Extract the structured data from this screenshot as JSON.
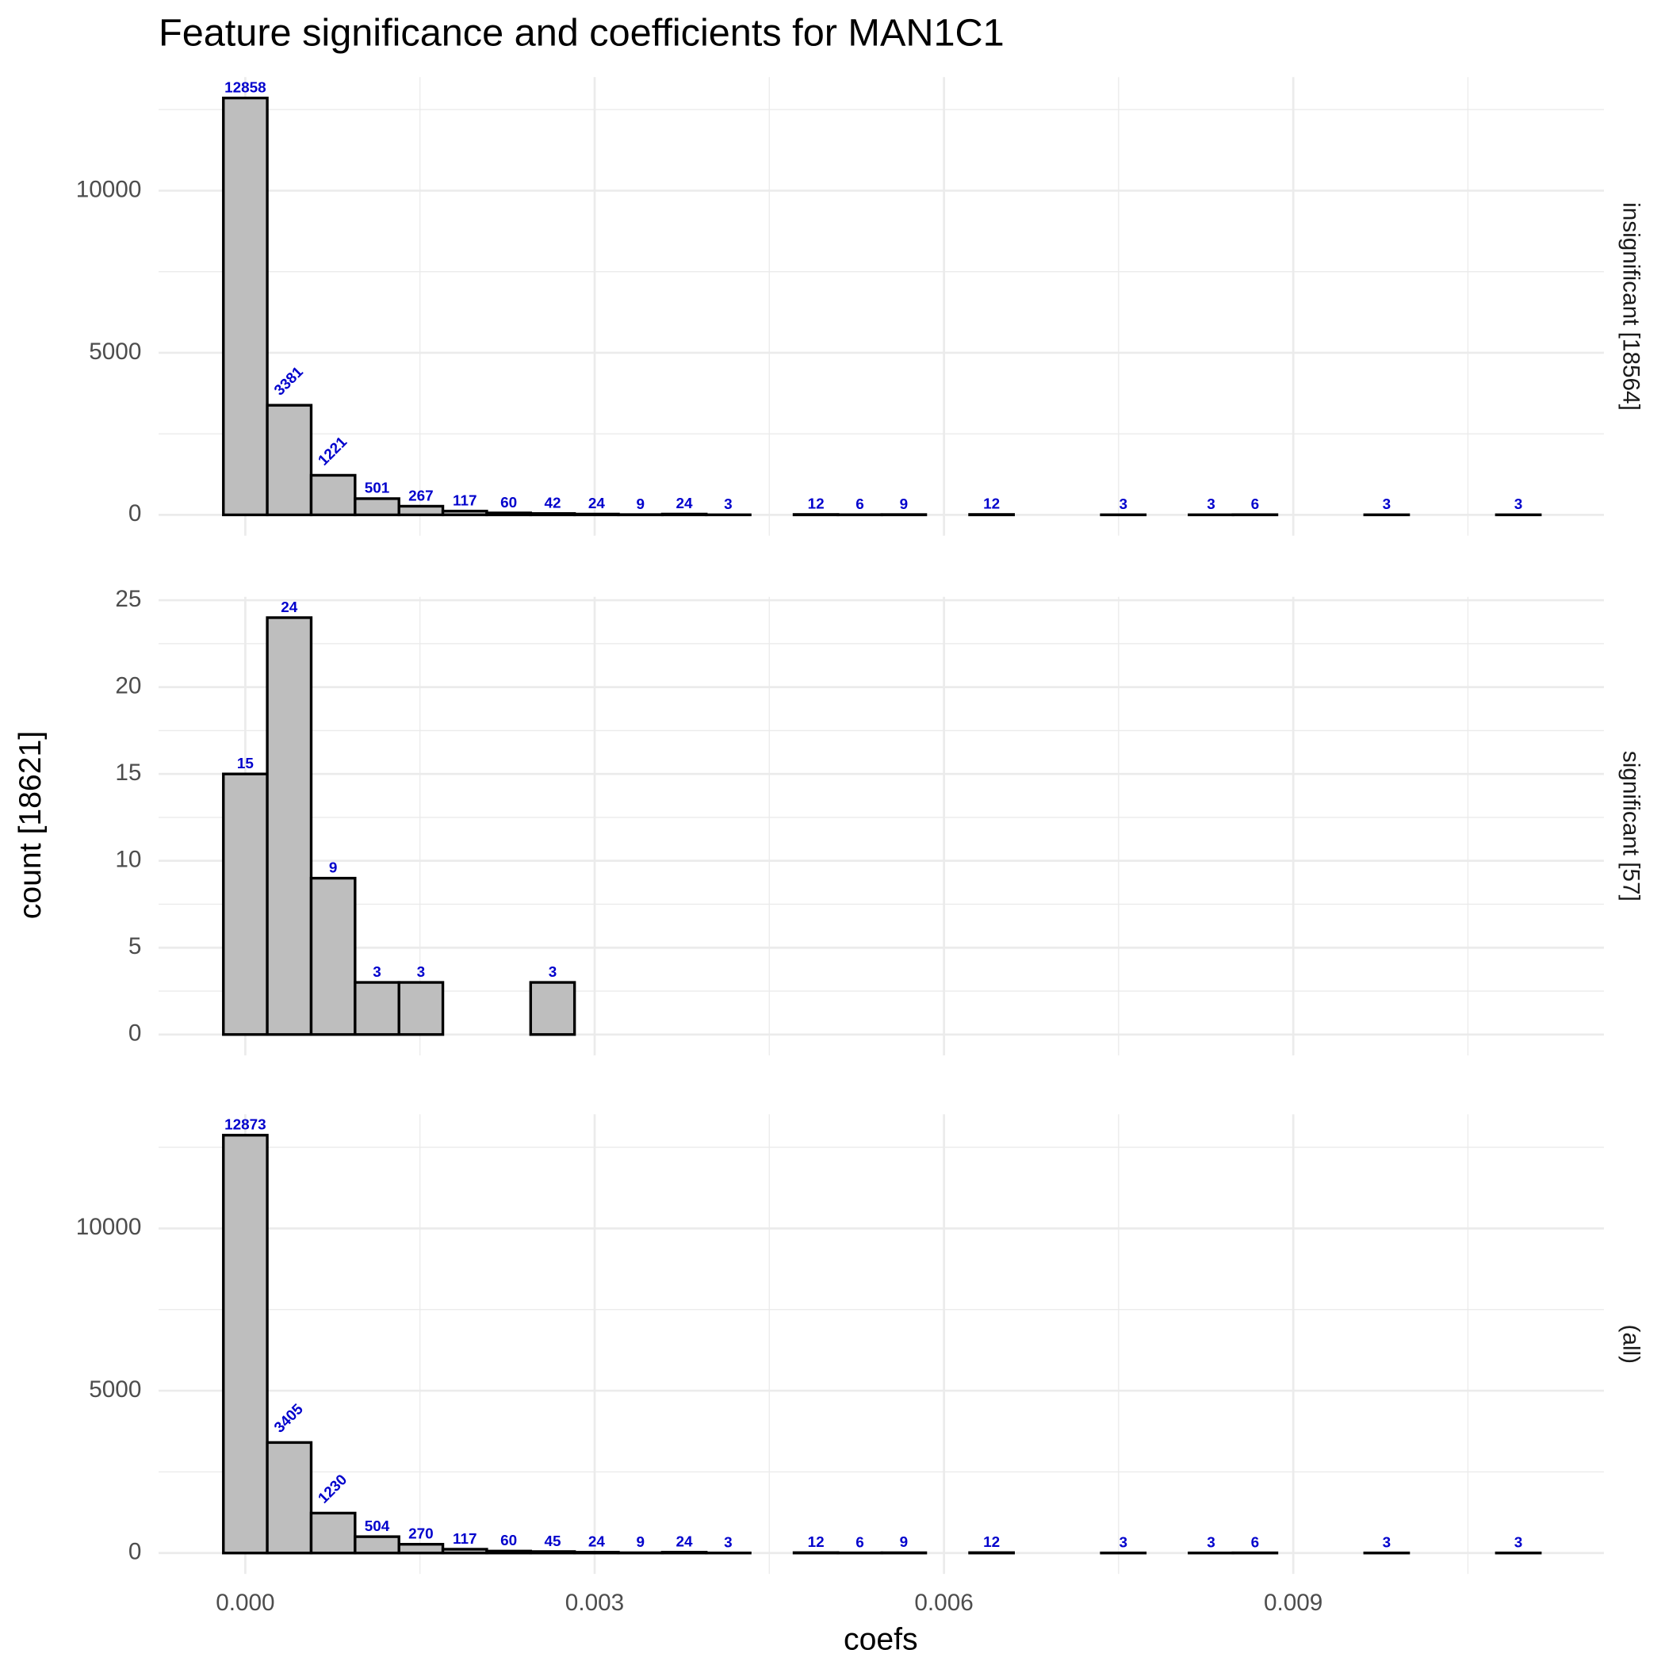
{
  "chart_data": {
    "type": "histogram",
    "title": "Feature significance and coefficients for MAN1C1",
    "x_label": "coefs",
    "y_label": "count [18621]",
    "bins": [
      -0.0001885,
      0.0001885,
      0.0005655,
      0.0009425,
      0.0013195,
      0.0016965,
      0.0020735,
      0.0024505,
      0.0028275,
      0.0032045,
      0.0035815,
      0.0039585,
      0.0043355,
      0.0047125,
      0.0050895,
      0.0054665,
      0.0058435,
      0.0062205,
      0.0065975,
      0.0069745,
      0.0073515,
      0.0077285,
      0.0081055,
      0.0084825,
      0.0088595,
      0.0092365,
      0.0096135,
      0.0099905,
      0.0103675,
      0.0107445,
      0.0111215
    ],
    "xlim": [
      -0.000745,
      0.011668
    ],
    "xticks": [
      {
        "value": 0,
        "label": "0.000"
      },
      {
        "value": 0.003,
        "label": "0.003"
      },
      {
        "value": 0.006,
        "label": "0.006"
      },
      {
        "value": 0.009,
        "label": "0.009"
      }
    ],
    "grid": true,
    "color": "#bebebe",
    "edge_color": "#000000",
    "label_color": "#0000cc",
    "facets": [
      {
        "name": "insignificant [18564]",
        "values": [
          12858,
          3381,
          1221,
          501,
          267,
          117,
          60,
          42,
          24,
          9,
          24,
          3,
          0,
          12,
          6,
          9,
          0,
          12,
          0,
          0,
          3,
          0,
          3,
          6,
          0,
          0,
          3,
          0,
          0,
          3
        ],
        "ylim": [
          -643,
          13501
        ],
        "yticks": [
          0,
          5000,
          10000
        ]
      },
      {
        "name": "significant [57]",
        "values": [
          15,
          24,
          9,
          3,
          3,
          0,
          0,
          3,
          0,
          0,
          0,
          0,
          0,
          0,
          0,
          0,
          0,
          0,
          0,
          0,
          0,
          0,
          0,
          0,
          0,
          0,
          0,
          0,
          0,
          0
        ],
        "ylim": [
          -1.2,
          25.2
        ],
        "yticks": [
          0,
          5,
          10,
          15,
          20,
          25
        ]
      },
      {
        "name": "(all)",
        "values": [
          12873,
          3405,
          1230,
          504,
          270,
          117,
          60,
          45,
          24,
          9,
          24,
          3,
          0,
          12,
          6,
          9,
          0,
          12,
          0,
          0,
          3,
          0,
          3,
          6,
          0,
          0,
          3,
          0,
          0,
          3
        ],
        "ylim": [
          -644,
          13517
        ],
        "yticks": [
          0,
          5000,
          10000
        ]
      }
    ]
  }
}
